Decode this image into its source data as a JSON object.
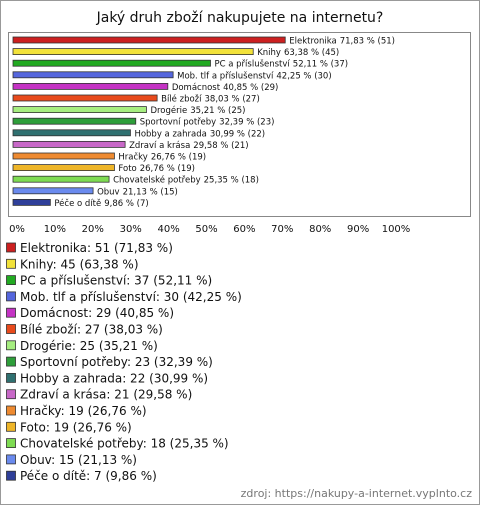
{
  "chart_data": {
    "type": "hbar",
    "title": "Jaký druh zboží nakupujete na internetu?",
    "categories": [
      "Elektronika",
      "Knihy",
      "PC a příslušenství",
      "Mob. tlf a příslušenství",
      "Domácnost",
      "Bílé zboží",
      "Drogérie",
      "Sportovní potřeby",
      "Hobby a zahrada",
      "Zdraví a krása",
      "Hračky",
      "Foto",
      "Chovatelské potřeby",
      "Obuv",
      "Péče o dítě"
    ],
    "values": [
      71.83,
      63.38,
      52.11,
      42.25,
      40.85,
      38.03,
      35.21,
      32.39,
      30.99,
      29.58,
      26.76,
      26.76,
      25.35,
      21.13,
      9.86
    ],
    "value_labels": [
      "71,83 % (51)",
      "63,38 % (45)",
      "52,11 % (37)",
      "42,25 % (30)",
      "40,85 % (29)",
      "38,03 % (27)",
      "35,21 % (25)",
      "32,39 % (23)",
      "30,99 % (22)",
      "29,58 % (21)",
      "26,76 % (19)",
      "26,76 % (19)",
      "25,35 % (18)",
      "21,13 % (15)",
      "9,86 % (7)"
    ],
    "colors": [
      "#cc2020",
      "#f2e23a",
      "#22aa22",
      "#5566dd",
      "#c433c4",
      "#e84a1c",
      "#a6ee80",
      "#2e9e3a",
      "#2f7070",
      "#c868c8",
      "#ee8a30",
      "#eeb528",
      "#7edb52",
      "#6a8aee",
      "#2f3f99"
    ],
    "legend_labels": [
      "Elektronika: 51 (71,83 %)",
      "Knihy: 45 (63,38 %)",
      "PC a příslušenství: 37 (52,11 %)",
      "Mob. tlf a příslušenství: 30 (42,25 %)",
      "Domácnost: 29 (40,85 %)",
      "Bílé zboží: 27 (38,03 %)",
      "Drogérie: 25 (35,21 %)",
      "Sportovní potřeby: 23 (32,39 %)",
      "Hobby a zahrada: 22 (30,99 %)",
      "Zdraví a krása: 21 (29,58 %)",
      "Hračky: 19 (26,76 %)",
      "Foto: 19 (26,76 %)",
      "Chovatelské potřeby: 18 (25,35 %)",
      "Obuv: 15 (21,13 %)",
      "Péče o dítě: 7 (9,86 %)"
    ],
    "xlim": [
      0,
      100
    ],
    "xticks": [
      {
        "value": 0,
        "label": "0%"
      },
      {
        "value": 10,
        "label": "10%"
      },
      {
        "value": 20,
        "label": "20%"
      },
      {
        "value": 30,
        "label": "30%"
      },
      {
        "value": 40,
        "label": "40%"
      },
      {
        "value": 50,
        "label": "50%"
      },
      {
        "value": 60,
        "label": "60%"
      },
      {
        "value": 70,
        "label": "70%"
      },
      {
        "value": 80,
        "label": "80%"
      },
      {
        "value": 90,
        "label": "90%"
      },
      {
        "value": 100,
        "label": "100%"
      }
    ],
    "source": "zdroj: https://nakupy-a-internet.vyplnto.cz"
  }
}
